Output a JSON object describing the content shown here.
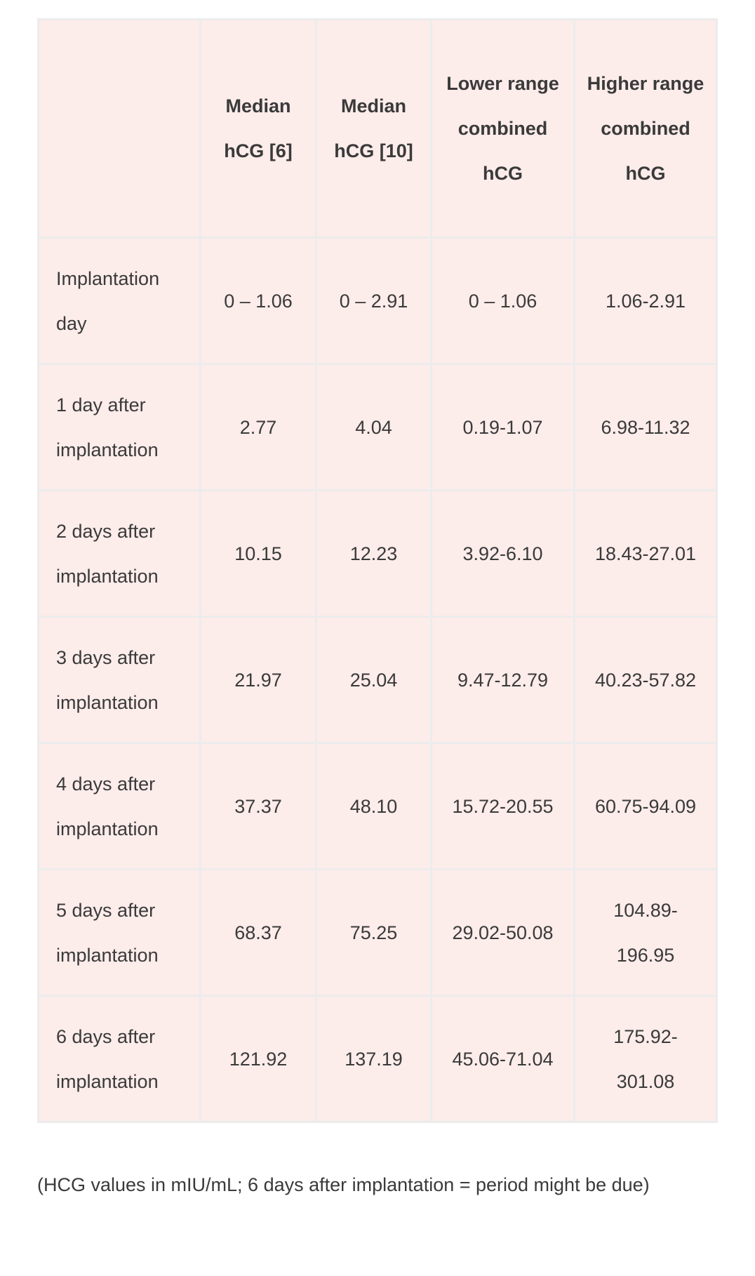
{
  "table": {
    "headers": [
      "",
      "Median hCG [6]",
      "Median hCG [10]",
      "Lower range combined hCG",
      "Higher range combined hCG"
    ],
    "rows": [
      [
        "Implantation day",
        "0 – 1.06",
        "0 – 2.91",
        "0 – 1.06",
        "1.06-2.91"
      ],
      [
        "1 day after implantation",
        "2.77",
        "4.04",
        "0.19-1.07",
        "6.98-11.32"
      ],
      [
        "2 days after implantation",
        "10.15",
        "12.23",
        "3.92-6.10",
        "18.43-27.01"
      ],
      [
        "3 days after implantation",
        "21.97",
        "25.04",
        "9.47-12.79",
        "40.23-57.82"
      ],
      [
        "4 days after implantation",
        "37.37",
        "48.10",
        "15.72-20.55",
        "60.75-94.09"
      ],
      [
        "5 days after implantation",
        "68.37",
        "75.25",
        "29.02-50.08",
        "104.89-196.95"
      ],
      [
        "6 days after implantation",
        "121.92",
        "137.19",
        "45.06-71.04",
        "175.92-301.08"
      ]
    ]
  },
  "caption": "(HCG values in mIU/mL; 6 days after implantation = period might be due)",
  "colors": {
    "cell_background": "#fcecea",
    "border": "#ececec",
    "text": "#3a3a3a"
  }
}
